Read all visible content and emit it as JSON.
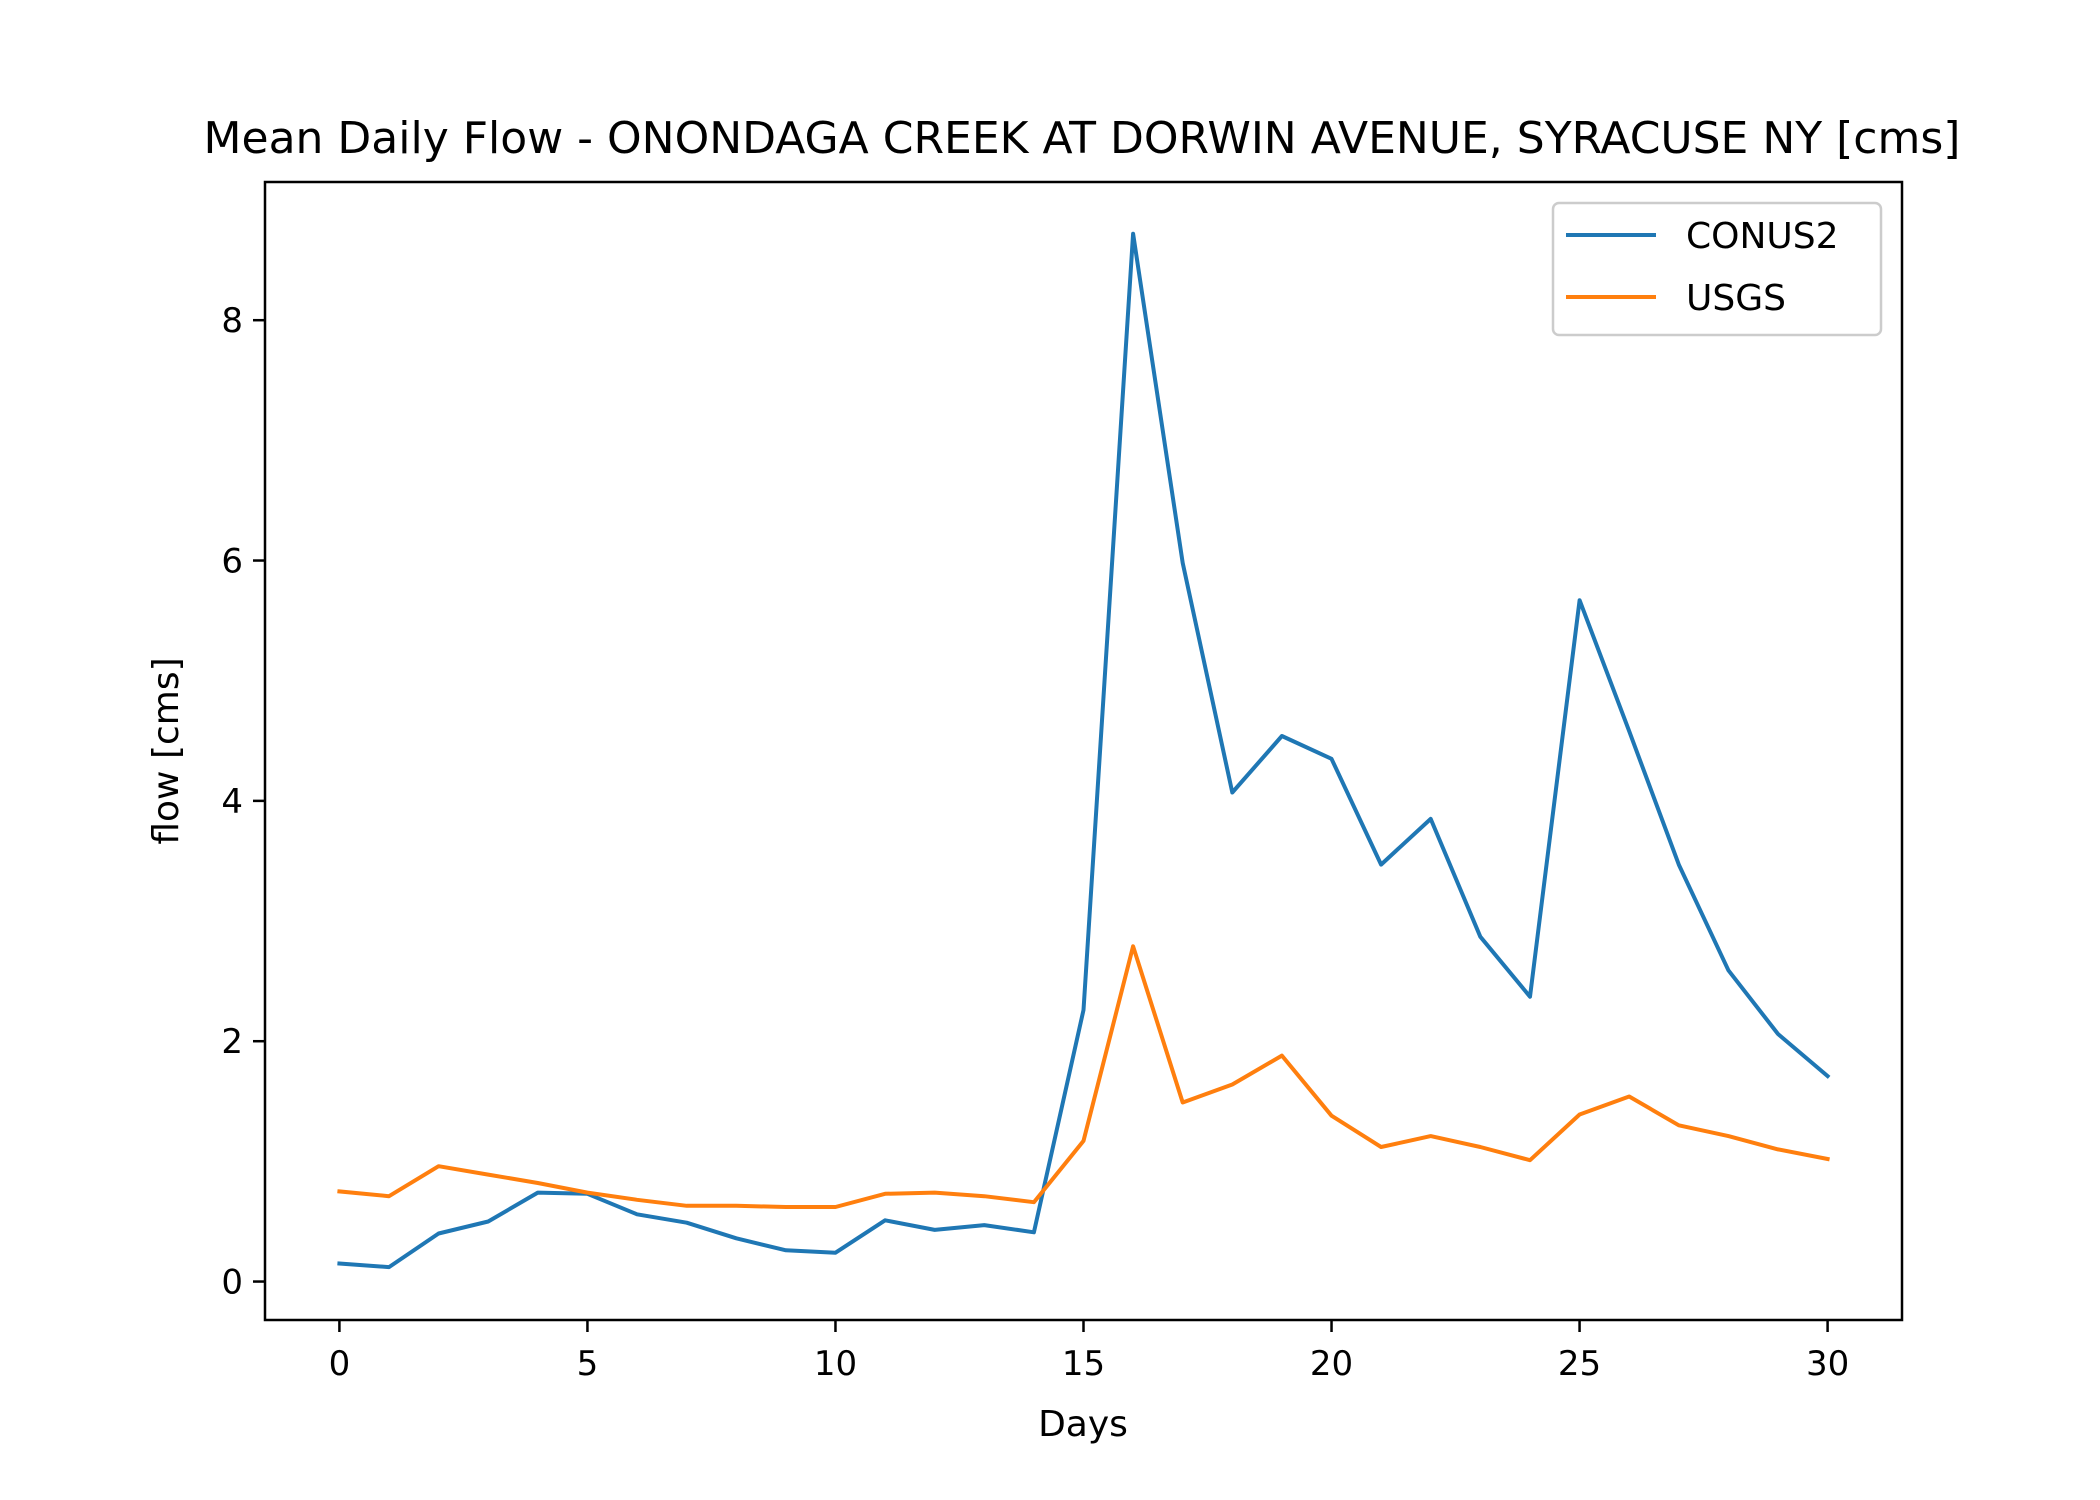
{
  "chart_data": {
    "type": "line",
    "title": "Mean Daily Flow - ONONDAGA CREEK AT DORWIN AVENUE, SYRACUSE NY [cms]",
    "xlabel": "Days",
    "ylabel": "flow [cms]",
    "xlim": [
      -1.5,
      31.5
    ],
    "ylim": [
      -0.32,
      9.15
    ],
    "xticks": [
      0,
      5,
      10,
      15,
      20,
      25,
      30
    ],
    "yticks": [
      0,
      2,
      4,
      6,
      8
    ],
    "grid": false,
    "legend": "top-right",
    "x": [
      0,
      1,
      2,
      3,
      4,
      5,
      6,
      7,
      8,
      9,
      10,
      11,
      12,
      13,
      14,
      15,
      16,
      17,
      18,
      19,
      20,
      21,
      22,
      23,
      24,
      25,
      26,
      27,
      28,
      29,
      30
    ],
    "series": [
      {
        "name": "CONUS2",
        "color": "#1f77b4",
        "values": [
          0.15,
          0.12,
          0.4,
          0.5,
          0.74,
          0.73,
          0.56,
          0.49,
          0.36,
          0.26,
          0.24,
          0.51,
          0.43,
          0.47,
          0.41,
          2.26,
          8.72,
          5.98,
          4.07,
          4.54,
          4.35,
          3.47,
          3.85,
          2.87,
          2.37,
          5.67,
          4.58,
          3.47,
          2.59,
          2.06,
          1.71
        ]
      },
      {
        "name": "USGS",
        "color": "#ff7f0e",
        "values": [
          0.75,
          0.71,
          0.96,
          0.89,
          0.82,
          0.74,
          0.68,
          0.63,
          0.63,
          0.62,
          0.62,
          0.73,
          0.74,
          0.71,
          0.66,
          1.17,
          2.79,
          1.49,
          1.64,
          1.88,
          1.38,
          1.12,
          1.21,
          1.12,
          1.01,
          1.39,
          1.54,
          1.3,
          1.21,
          1.1,
          1.02
        ]
      }
    ]
  }
}
